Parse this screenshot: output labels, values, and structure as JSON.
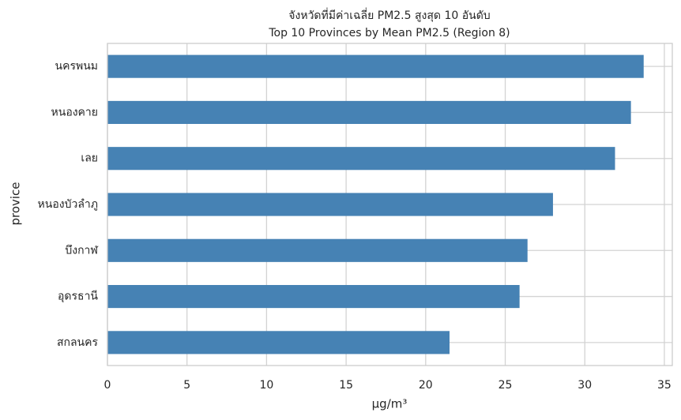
{
  "chart_data": {
    "type": "barh",
    "title": "จังหวัดที่มีค่าเฉลี่ย PM2.5 สูงสุด 10 อันดับ",
    "subtitle": "Top 10 Provinces by Mean PM2.5 (Region 8)",
    "x_label": "μg/m³",
    "y_label": "provice",
    "categories": [
      "นครพนม",
      "หนองคาย",
      "เลย",
      "หนองบัวลำภู",
      "บึงกาฬ",
      "อุดรธานี",
      "สกลนคร"
    ],
    "values": [
      33.7,
      32.9,
      31.9,
      28.0,
      26.4,
      25.9,
      21.5
    ],
    "color": "#4682b4",
    "xlim": [
      0,
      35.5
    ],
    "xticks": [
      0,
      5,
      10,
      15,
      20,
      25,
      30,
      35
    ],
    "grid": true
  }
}
